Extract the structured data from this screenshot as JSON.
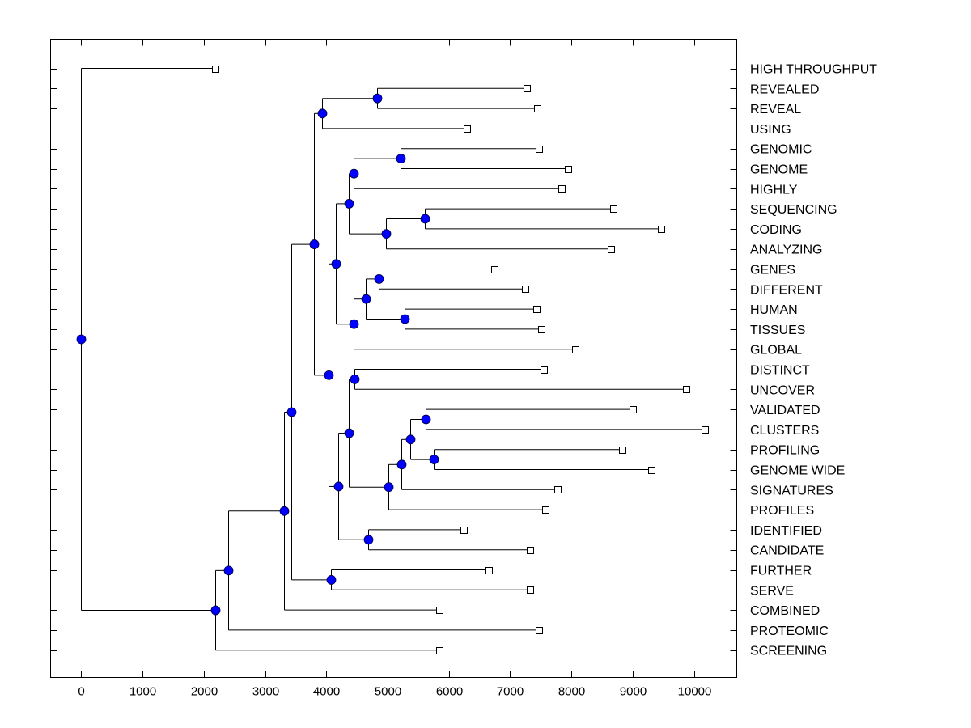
{
  "chart_data": {
    "type": "dendrogram",
    "title": "",
    "xlabel": "",
    "ylabel": "",
    "xlim": [
      -500,
      10700
    ],
    "x_ticks": [
      0,
      1000,
      2000,
      3000,
      4000,
      5000,
      6000,
      7000,
      8000,
      9000,
      10000
    ],
    "x_tick_labels": [
      "0",
      "1000",
      "2000",
      "3000",
      "4000",
      "5000",
      "6000",
      "7000",
      "8000",
      "9000",
      "10000"
    ],
    "grid": false,
    "node_color": "#0000ff",
    "leaf_marker": "open-square",
    "leaves": [
      {
        "label": "HIGH THROUGHPUT",
        "value": 2190
      },
      {
        "label": "REVEALED",
        "value": 7270
      },
      {
        "label": "REVEAL",
        "value": 7450
      },
      {
        "label": "USING",
        "value": 6300
      },
      {
        "label": "GENOMIC",
        "value": 7470
      },
      {
        "label": "GENOME",
        "value": 7940
      },
      {
        "label": "HIGHLY",
        "value": 7840
      },
      {
        "label": "SEQUENCING",
        "value": 8690
      },
      {
        "label": "CODING",
        "value": 9470
      },
      {
        "label": "ANALYZING",
        "value": 8640
      },
      {
        "label": "GENES",
        "value": 6740
      },
      {
        "label": "DIFFERENT",
        "value": 7240
      },
      {
        "label": "HUMAN",
        "value": 7430
      },
      {
        "label": "TISSUES",
        "value": 7510
      },
      {
        "label": "GLOBAL",
        "value": 8070
      },
      {
        "label": "DISTINCT",
        "value": 7550
      },
      {
        "label": "UNCOVER",
        "value": 9870
      },
      {
        "label": "VALIDATED",
        "value": 9000
      },
      {
        "label": "CLUSTERS",
        "value": 10180
      },
      {
        "label": "PROFILING",
        "value": 8830
      },
      {
        "label": "GENOME WIDE",
        "value": 9310
      },
      {
        "label": "SIGNATURES",
        "value": 7780
      },
      {
        "label": "PROFILES",
        "value": 7570
      },
      {
        "label": "IDENTIFIED",
        "value": 6240
      },
      {
        "label": "CANDIDATE",
        "value": 7330
      },
      {
        "label": "FURTHER",
        "value": 6650
      },
      {
        "label": "SERVE",
        "value": 7330
      },
      {
        "label": "COMBINED",
        "value": 5840
      },
      {
        "label": "PROTEOMIC",
        "value": 7470
      },
      {
        "label": "SCREENING",
        "value": 5840
      }
    ],
    "tree": {
      "value": 0,
      "children": [
        {
          "leaf": 0
        },
        {
          "value": 2190,
          "children": [
            {
              "value": 2400,
              "children": [
                {
                  "value": 3310,
                  "children": [
                    {
                      "value": 3430,
                      "children": [
                        {
                          "value": 3800,
                          "children": [
                            {
                              "value": 3930,
                              "children": [
                                {
                                  "value": 4830,
                                  "children": [
                                    {
                                      "leaf": 1
                                    },
                                    {
                                      "leaf": 2
                                    }
                                  ]
                                },
                                {
                                  "leaf": 3
                                }
                              ]
                            },
                            {
                              "value": 4040,
                              "children": [
                                {
                                  "value": 4160,
                                  "children": [
                                    {
                                      "value": 4370,
                                      "children": [
                                        {
                                          "value": 4440,
                                          "children": [
                                            {
                                              "value": 5210,
                                              "children": [
                                                {
                                                  "leaf": 4
                                                },
                                                {
                                                  "leaf": 5
                                                }
                                              ]
                                            },
                                            {
                                              "leaf": 6
                                            }
                                          ]
                                        },
                                        {
                                          "value": 4970,
                                          "children": [
                                            {
                                              "value": 5610,
                                              "children": [
                                                {
                                                  "leaf": 7
                                                },
                                                {
                                                  "leaf": 8
                                                }
                                              ]
                                            },
                                            {
                                              "leaf": 9
                                            }
                                          ]
                                        }
                                      ]
                                    },
                                    {
                                      "value": 4450,
                                      "children": [
                                        {
                                          "value": 4640,
                                          "children": [
                                            {
                                              "value": 4850,
                                              "children": [
                                                {
                                                  "leaf": 10
                                                },
                                                {
                                                  "leaf": 11
                                                }
                                              ]
                                            },
                                            {
                                              "value": 5280,
                                              "children": [
                                                {
                                                  "leaf": 12
                                                },
                                                {
                                                  "leaf": 13
                                                }
                                              ]
                                            }
                                          ]
                                        },
                                        {
                                          "leaf": 14
                                        }
                                      ]
                                    }
                                  ]
                                },
                                {
                                  "value": 4190,
                                  "children": [
                                    {
                                      "value": 4370,
                                      "children": [
                                        {
                                          "value": 4460,
                                          "children": [
                                            {
                                              "leaf": 15
                                            },
                                            {
                                              "leaf": 16
                                            }
                                          ]
                                        },
                                        {
                                          "value": 5020,
                                          "children": [
                                            {
                                              "value": 5220,
                                              "children": [
                                                {
                                                  "value": 5370,
                                                  "children": [
                                                    {
                                                      "value": 5620,
                                                      "children": [
                                                        {
                                                          "leaf": 17
                                                        },
                                                        {
                                                          "leaf": 18
                                                        }
                                                      ]
                                                    },
                                                    {
                                                      "value": 5760,
                                                      "children": [
                                                        {
                                                          "leaf": 19
                                                        },
                                                        {
                                                          "leaf": 20
                                                        }
                                                      ]
                                                    }
                                                  ]
                                                },
                                                {
                                                  "leaf": 21
                                                }
                                              ]
                                            },
                                            {
                                              "leaf": 22
                                            }
                                          ]
                                        }
                                      ]
                                    },
                                    {
                                      "value": 4690,
                                      "children": [
                                        {
                                          "leaf": 23
                                        },
                                        {
                                          "leaf": 24
                                        }
                                      ]
                                    }
                                  ]
                                }
                              ]
                            }
                          ]
                        },
                        {
                          "value": 4080,
                          "children": [
                            {
                              "leaf": 25
                            },
                            {
                              "leaf": 26
                            }
                          ]
                        }
                      ]
                    },
                    {
                      "leaf": 27
                    }
                  ]
                },
                {
                  "leaf": 28
                }
              ]
            },
            {
              "leaf": 29
            }
          ]
        }
      ]
    }
  }
}
